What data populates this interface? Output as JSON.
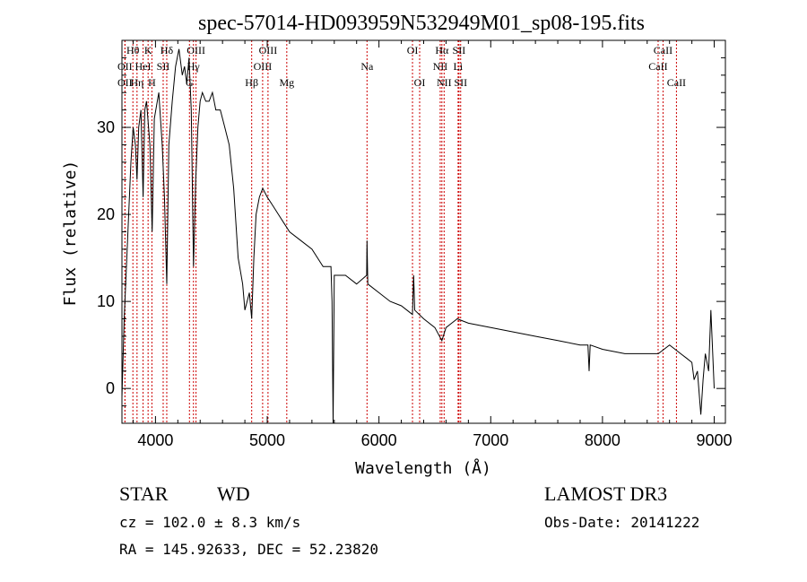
{
  "chart_data": {
    "type": "line",
    "title": "spec-57014-HD093959N532949M01_sp08-195.fits",
    "xlabel": "Wavelength (Å)",
    "ylabel": "Flux (relative)",
    "xlim": [
      3700,
      9100
    ],
    "ylim": [
      -4,
      40
    ],
    "x_ticks": [
      4000,
      5000,
      6000,
      7000,
      8000,
      9000
    ],
    "y_ticks": [
      0,
      10,
      20,
      30
    ],
    "x_tick_labels": [
      "4000",
      "5000",
      "6000",
      "7000",
      "8000",
      "9000"
    ],
    "y_tick_labels": [
      "0",
      "10",
      "20",
      "30"
    ],
    "series": [
      {
        "name": "flux",
        "x": [
          3700,
          3720,
          3740,
          3760,
          3780,
          3800,
          3820,
          3835,
          3850,
          3870,
          3889,
          3905,
          3920,
          3950,
          3970,
          3990,
          4030,
          4060,
          4080,
          4101,
          4120,
          4150,
          4180,
          4210,
          4240,
          4260,
          4280,
          4300,
          4320,
          4340,
          4360,
          4380,
          4400,
          4420,
          4450,
          4480,
          4510,
          4540,
          4580,
          4620,
          4660,
          4700,
          4740,
          4780,
          4800,
          4820,
          4840,
          4861,
          4880,
          4900,
          4930,
          4960,
          5000,
          5050,
          5100,
          5150,
          5200,
          5300,
          5400,
          5500,
          5570,
          5580,
          5590,
          5600,
          5700,
          5800,
          5890,
          5893,
          5900,
          6000,
          6100,
          6200,
          6300,
          6310,
          6320,
          6400,
          6500,
          6563,
          6600,
          6650,
          6700,
          6800,
          7000,
          7200,
          7400,
          7600,
          7800,
          7870,
          7880,
          7890,
          8000,
          8200,
          8400,
          8500,
          8600,
          8700,
          8750,
          8800,
          8820,
          8850,
          8880,
          8900,
          8920,
          8950,
          8970,
          9000
        ],
        "y": [
          -1,
          8,
          14,
          20,
          26,
          30,
          28,
          24,
          30,
          32,
          22,
          32,
          33,
          28,
          18,
          31,
          34,
          28,
          22,
          12,
          28,
          33,
          37,
          39,
          36,
          37,
          35,
          38,
          32,
          14,
          24,
          30,
          33,
          34,
          33,
          33,
          34,
          32,
          32,
          30,
          28,
          23,
          15,
          12,
          9,
          10,
          11,
          8,
          15,
          20,
          22,
          23,
          22,
          21,
          20,
          19,
          18,
          17,
          16,
          14,
          14,
          10,
          -4,
          13,
          13,
          12,
          13,
          17,
          12,
          11,
          10,
          9.5,
          8.5,
          13,
          9,
          8,
          7,
          5.5,
          7,
          7.5,
          8,
          7.5,
          7,
          6.5,
          6,
          5.5,
          5,
          5,
          2,
          5,
          4.5,
          4,
          4,
          4,
          5,
          4,
          3.5,
          3,
          1,
          2,
          -3,
          1,
          4,
          2,
          9,
          0
        ]
      }
    ],
    "line_annotations": [
      {
        "label": "Hθ",
        "x": 3798,
        "row": 1
      },
      {
        "label": "OII",
        "x": 3727,
        "row": 2
      },
      {
        "label": "OII",
        "x": 3727,
        "row": 3
      },
      {
        "label": "K",
        "x": 3934,
        "row": 1
      },
      {
        "label": "HeI",
        "x": 3889,
        "row": 2
      },
      {
        "label": "Hη",
        "x": 3835,
        "row": 3
      },
      {
        "label": "Hδ",
        "x": 4101,
        "row": 1
      },
      {
        "label": "SII",
        "x": 4069,
        "row": 2
      },
      {
        "label": "H",
        "x": 3968,
        "row": 3
      },
      {
        "label": "OIII",
        "x": 4363,
        "row": 1
      },
      {
        "label": "Hγ",
        "x": 4340,
        "row": 2
      },
      {
        "label": "G",
        "x": 4304,
        "row": 3
      },
      {
        "label": "OIII",
        "x": 5007,
        "row": 1
      },
      {
        "label": "OIII",
        "x": 4959,
        "row": 2
      },
      {
        "label": "Hβ",
        "x": 4861,
        "row": 3
      },
      {
        "label": "Mg",
        "x": 5175,
        "row": 3
      },
      {
        "label": "Na",
        "x": 5893,
        "row": 2
      },
      {
        "label": "OI",
        "x": 6300,
        "row": 1
      },
      {
        "label": "OI",
        "x": 6364,
        "row": 3
      },
      {
        "label": "Hα",
        "x": 6563,
        "row": 1
      },
      {
        "label": "SII",
        "x": 6716,
        "row": 1
      },
      {
        "label": "NII",
        "x": 6548,
        "row": 2
      },
      {
        "label": "Li",
        "x": 6708,
        "row": 2
      },
      {
        "label": "NII",
        "x": 6583,
        "row": 3
      },
      {
        "label": "SII",
        "x": 6731,
        "row": 3
      },
      {
        "label": "CaII",
        "x": 8542,
        "row": 1
      },
      {
        "label": "CaII",
        "x": 8498,
        "row": 2
      },
      {
        "label": "CaII",
        "x": 8662,
        "row": 3
      }
    ]
  },
  "info": {
    "object_class": "STAR",
    "subclass": "WD",
    "cz": "cz = 102.0 ± 8.3 km/s",
    "coords": "RA = 145.92633, DEC =  52.23820",
    "survey": "LAMOST DR3",
    "obs_date": "Obs-Date: 20141222"
  },
  "colors": {
    "line": "#000000",
    "annotation": "#cc0000"
  }
}
